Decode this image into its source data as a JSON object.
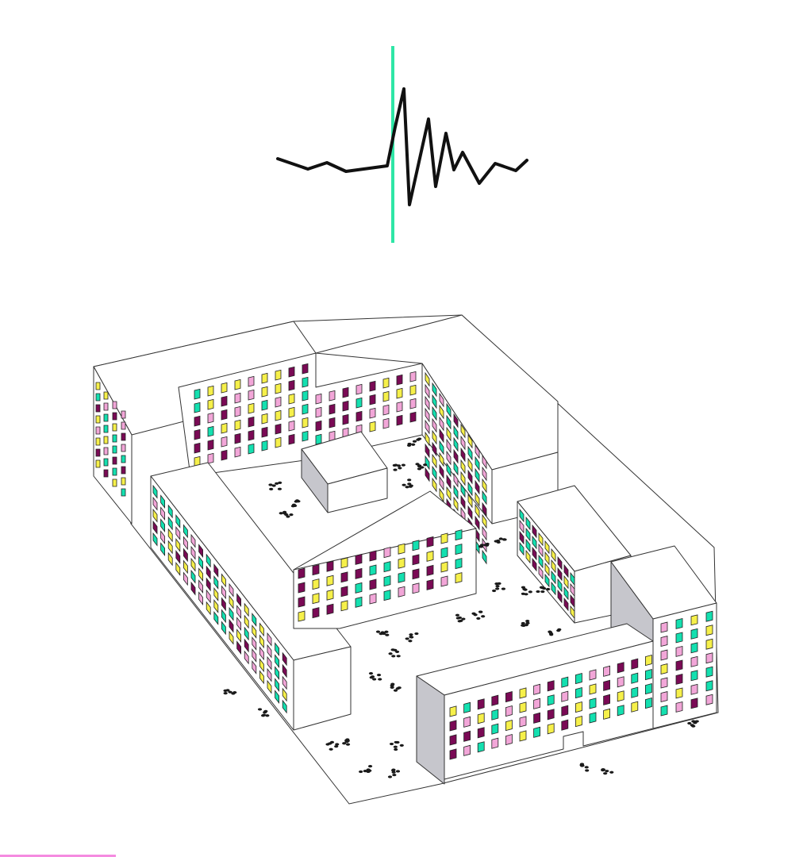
{
  "illustration": {
    "subject": "isometric-residential-block-with-seismic-waveform",
    "icon": "seismograph-icon"
  },
  "colors": {
    "background": "#ffffff",
    "outline": "#333333",
    "waveform": "#111111",
    "marker": "#2ee6a6",
    "roof": "#ffffff",
    "wall_light": "#ffffff",
    "wall_shade": "#c6c6cc",
    "window_teal": "#14e0b0",
    "window_yellow": "#f6f04a",
    "window_pink": "#f2a6d8",
    "window_plum": "#7a0a55",
    "accent_bar": "#f58be0",
    "figure_ink": "#1a1a1a"
  }
}
